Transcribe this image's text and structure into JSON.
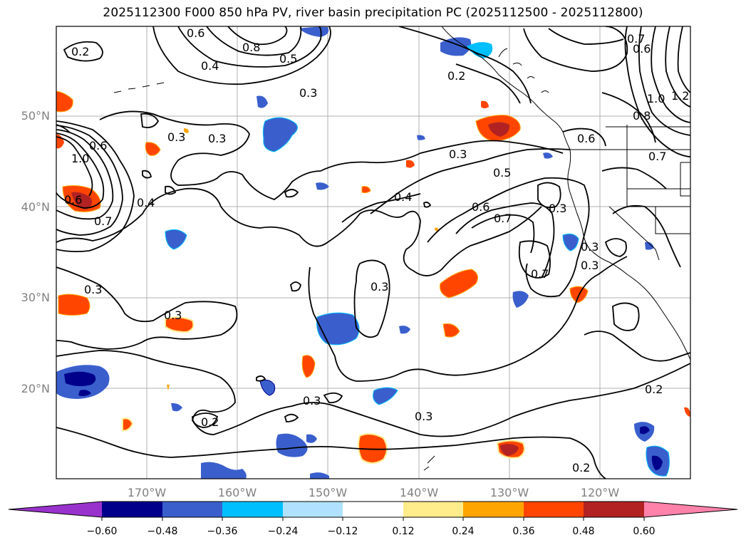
{
  "title": "2025112300 F000 850 hPa PV, river basin precipitation PC (2025112500 - 2025112800)",
  "map": {
    "lat_labels": [
      "50°N",
      "40°N",
      "30°N",
      "20°N"
    ],
    "lon_labels": [
      "170°W",
      "160°W",
      "150°W",
      "140°W",
      "130°W",
      "120°W"
    ],
    "contour_labels": [
      "0.2",
      "0.6",
      "0.8",
      "0.5",
      "0.4",
      "0.7",
      "0.6",
      "0.2",
      "0.3",
      "0.3",
      "0.3",
      "1.2",
      "1.0",
      "0.8",
      "0.6",
      "0.3",
      "0.6",
      "1.0",
      "0.4",
      "0.6",
      "0.3",
      "0.5",
      "0.4",
      "0.7",
      "0.6",
      "0.7",
      "0.7",
      "0.3",
      "0.3",
      "0.3",
      "0.3",
      "0.7",
      "0.3",
      "0.2",
      "0.3",
      "0.3",
      "0.2",
      "0.2"
    ]
  },
  "colorbar": {
    "tick_labels": [
      "−0.60",
      "−0.48",
      "−0.36",
      "−0.24",
      "−0.12",
      "0.12",
      "0.24",
      "0.36",
      "0.48",
      "0.60"
    ],
    "colors": {
      "under": "#9932cc",
      "c1": "#00008b",
      "c2": "#3a5fcd",
      "c3": "#00bfff",
      "c4": "#b0e2ff",
      "c5": "#ffffff",
      "c6": "#ffec8b",
      "c7": "#ffa500",
      "c8": "#ff4500",
      "c9": "#b22222",
      "over": "#ff82ab"
    }
  }
}
